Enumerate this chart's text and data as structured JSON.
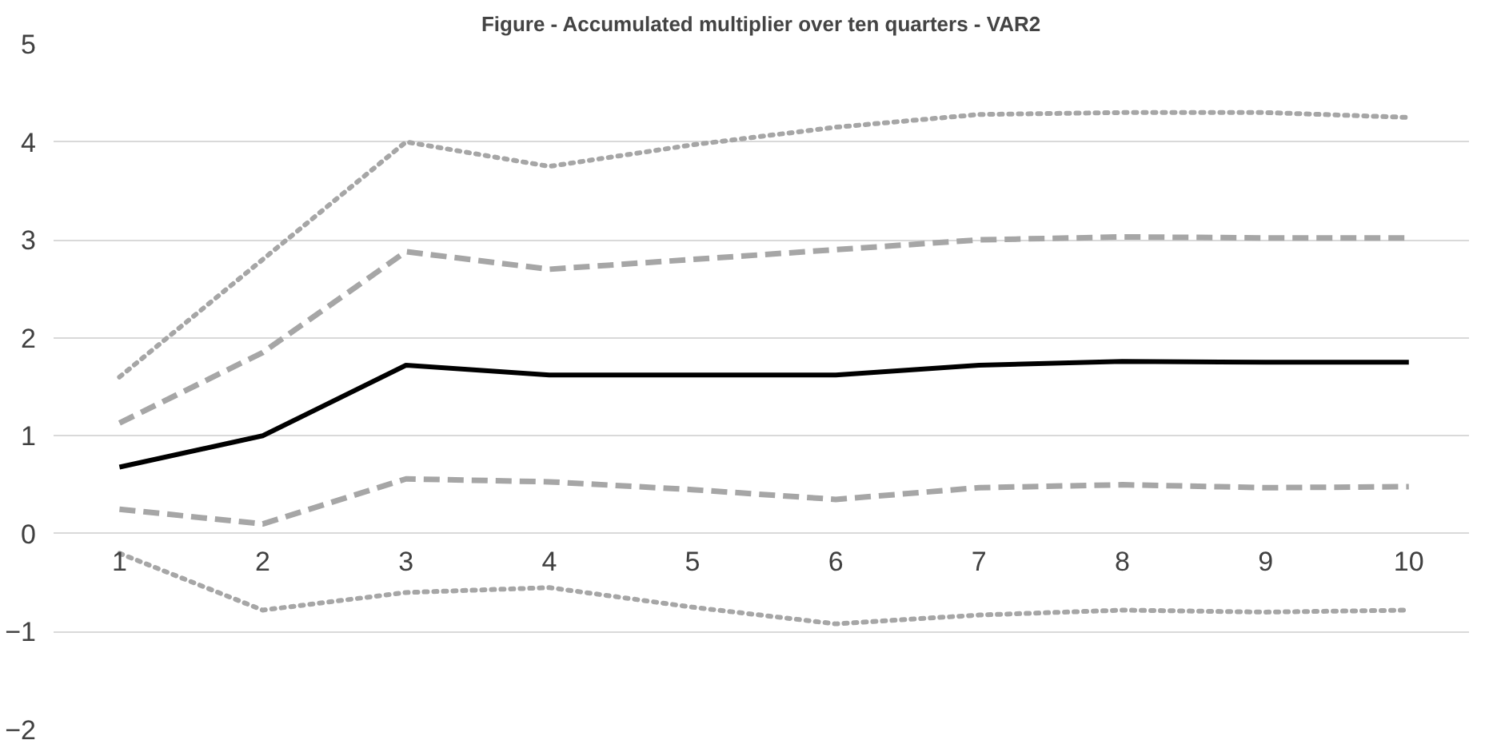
{
  "chart_data": {
    "type": "line",
    "title": "Figure - Accumulated multiplier over ten quarters - VAR2",
    "categories": [
      "1",
      "2",
      "3",
      "4",
      "5",
      "6",
      "7",
      "8",
      "9",
      "10"
    ],
    "series": [
      {
        "color": "#a6a6a6",
        "line_style": "dotted",
        "values": [
          1.6,
          2.8,
          4.0,
          3.75,
          3.97,
          4.15,
          4.28,
          4.3,
          4.3,
          4.25
        ]
      },
      {
        "color": "#a6a6a6",
        "line_style": "dashed",
        "values": [
          1.13,
          1.85,
          2.88,
          2.7,
          2.8,
          2.9,
          3.0,
          3.03,
          3.02,
          3.02
        ]
      },
      {
        "color": "#000000",
        "line_style": "solid",
        "values": [
          0.68,
          1.0,
          1.72,
          1.62,
          1.62,
          1.62,
          1.72,
          1.76,
          1.75,
          1.75
        ]
      },
      {
        "color": "#a6a6a6",
        "line_style": "dashed",
        "values": [
          0.25,
          0.1,
          0.56,
          0.53,
          0.45,
          0.35,
          0.47,
          0.5,
          0.47,
          0.48
        ]
      },
      {
        "color": "#a6a6a6",
        "line_style": "dotted",
        "values": [
          -0.2,
          -0.78,
          -0.6,
          -0.55,
          -0.75,
          -0.92,
          -0.83,
          -0.78,
          -0.8,
          -0.78
        ]
      }
    ],
    "ylim": [
      -2,
      5
    ],
    "yticks": [
      -2,
      -1,
      0,
      1,
      2,
      3,
      4,
      5
    ],
    "grid": "y"
  }
}
